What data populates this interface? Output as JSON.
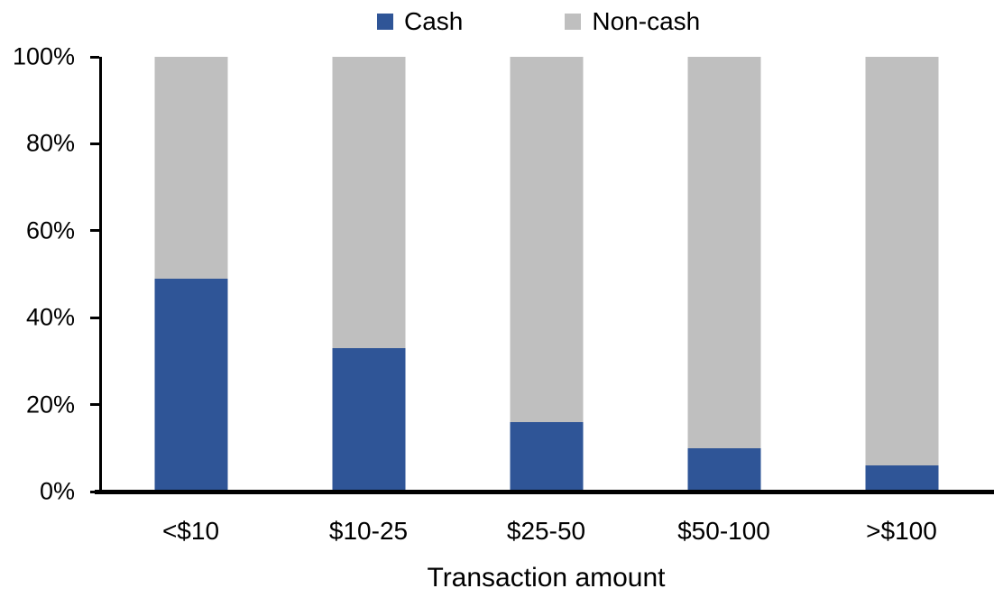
{
  "chart_data": {
    "type": "bar",
    "subtype": "stacked-100-percent-column",
    "categories": [
      "<$10",
      "$10-25",
      "$25-50",
      "$50-100",
      ">$100"
    ],
    "series": [
      {
        "name": "Cash",
        "color": "#2F5597",
        "values": [
          49,
          33,
          16,
          10,
          6
        ]
      },
      {
        "name": "Non-cash",
        "color": "#BFBFBF",
        "values": [
          51,
          67,
          84,
          90,
          94
        ]
      }
    ],
    "title": "",
    "xlabel": "Transaction amount",
    "ylabel": "",
    "ylim": [
      0,
      100
    ],
    "y_ticks": [
      "0%",
      "20%",
      "40%",
      "60%",
      "80%",
      "100%"
    ],
    "grid": false,
    "legend_position": "top-center",
    "axis_color": "#000000",
    "background_color": "#FFFFFF"
  }
}
